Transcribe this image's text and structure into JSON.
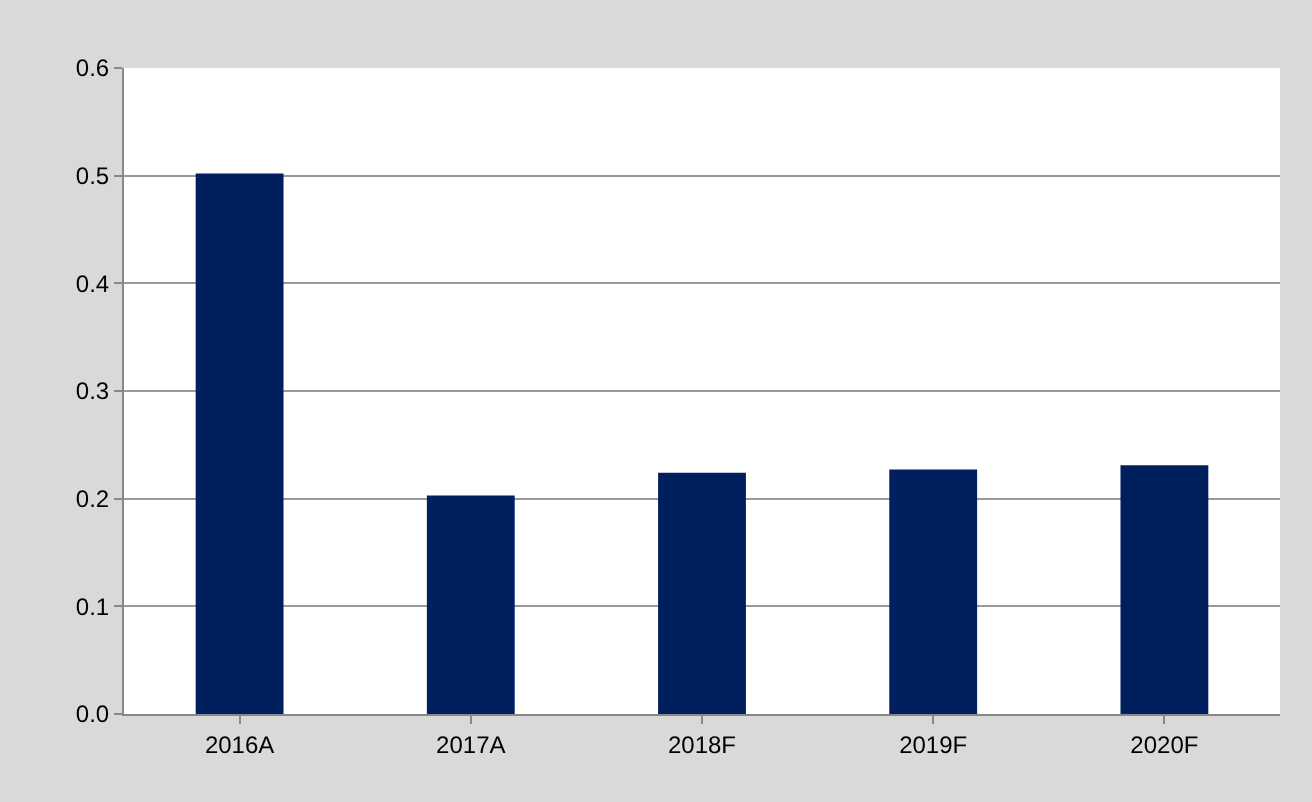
{
  "chart_data": {
    "type": "bar",
    "categories": [
      "2016A",
      "2017A",
      "2018F",
      "2019F",
      "2020F"
    ],
    "values": [
      0.502,
      0.203,
      0.224,
      0.227,
      0.231
    ],
    "color": "#001f5f",
    "ylim": [
      0,
      0.6
    ],
    "yticks": [
      {
        "value": 0,
        "label": "0.0"
      },
      {
        "value": 0.1,
        "label": "0.1"
      },
      {
        "value": 0.2,
        "label": "0.2"
      },
      {
        "value": 0.3,
        "label": "0.3"
      },
      {
        "value": 0.4,
        "label": "0.4"
      },
      {
        "value": 0.5,
        "label": "0.5"
      },
      {
        "value": 0.6,
        "label": "0.6"
      }
    ],
    "grid": "y"
  }
}
